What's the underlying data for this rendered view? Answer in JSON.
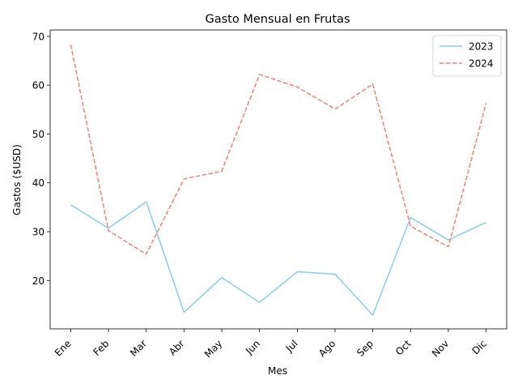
{
  "chart_data": {
    "type": "line",
    "title": "Gasto Mensual en Frutas",
    "xlabel": "Mes",
    "ylabel": "Gastos ($USD)",
    "categories": [
      "Ene",
      "Feb",
      "Mar",
      "Abr",
      "May",
      "Jun",
      "Jul",
      "Ago",
      "Sep",
      "Oct",
      "Nov",
      "Dic"
    ],
    "yticks": [
      20,
      30,
      40,
      50,
      60,
      70
    ],
    "ylim": [
      10.1,
      71.3
    ],
    "grid": false,
    "legend_position": "top-right",
    "series": [
      {
        "name": "2023",
        "color": "#87ceeb",
        "linestyle": "solid",
        "values": [
          35.5,
          30.7,
          36.1,
          13.5,
          20.6,
          15.5,
          21.8,
          21.3,
          12.9,
          32.9,
          28.3,
          31.9
        ]
      },
      {
        "name": "2024",
        "color": "#fa8072",
        "linestyle": "dashed",
        "values": [
          68.3,
          30.2,
          25.4,
          40.8,
          42.4,
          62.2,
          59.6,
          55.1,
          60.2,
          31.1,
          26.9,
          56.3
        ]
      }
    ]
  }
}
